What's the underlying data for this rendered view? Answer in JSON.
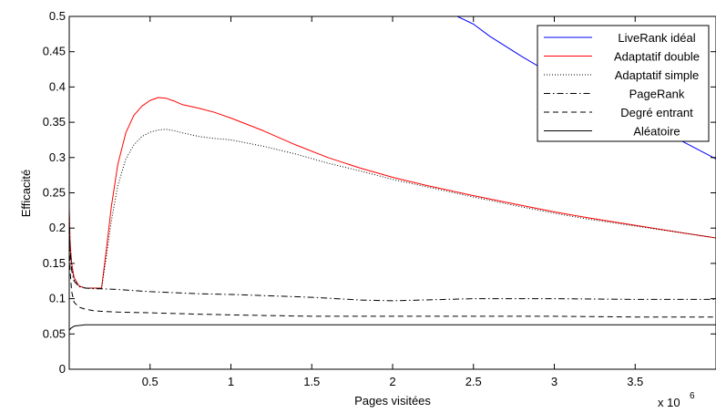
{
  "chart_data": {
    "type": "line",
    "title": "",
    "xlabel": "Pages visitées",
    "ylabel": "Efficacité",
    "x_exponent_label": "x 10",
    "x_exponent_power": "6",
    "xlim": [
      0,
      4000000
    ],
    "ylim": [
      0,
      0.5
    ],
    "xticks": [
      500000,
      1000000,
      1500000,
      2000000,
      2500000,
      3000000,
      3500000
    ],
    "xtick_labels": [
      "0.5",
      "1",
      "1.5",
      "2",
      "2.5",
      "3",
      "3.5"
    ],
    "yticks": [
      0,
      0.05,
      0.1,
      0.15,
      0.2,
      0.25,
      0.3,
      0.35,
      0.4,
      0.45,
      0.5
    ],
    "ytick_labels": [
      "0",
      "0.05",
      "0.1",
      "0.15",
      "0.2",
      "0.25",
      "0.3",
      "0.35",
      "0.4",
      "0.45",
      "0.5"
    ],
    "grid": false,
    "legend_position": "top-right",
    "series": [
      {
        "name": "LiveRank idéal",
        "color": "#0000ff",
        "dash": "solid",
        "x": [
          2400000,
          2500000,
          2600000,
          2800000,
          3000000,
          3200000,
          3400000,
          3600000,
          3800000,
          4000000
        ],
        "y": [
          0.5,
          0.489,
          0.472,
          0.443,
          0.416,
          0.391,
          0.368,
          0.346,
          0.322,
          0.298
        ]
      },
      {
        "name": "Adaptatif double",
        "color": "#ff0000",
        "dash": "solid",
        "x": [
          0,
          5000,
          15000,
          30000,
          60000,
          100000,
          150000,
          200000,
          230000,
          260000,
          300000,
          350000,
          400000,
          450000,
          500000,
          550000,
          600000,
          650000,
          700000,
          800000,
          900000,
          1000000,
          1200000,
          1400000,
          1600000,
          1800000,
          2000000,
          2200000,
          2500000,
          2800000,
          3000000,
          3200000,
          3500000,
          3800000,
          4000000
        ],
        "y": [
          0.23,
          0.18,
          0.15,
          0.13,
          0.118,
          0.115,
          0.115,
          0.115,
          0.17,
          0.23,
          0.29,
          0.335,
          0.36,
          0.373,
          0.381,
          0.385,
          0.384,
          0.38,
          0.375,
          0.37,
          0.364,
          0.356,
          0.338,
          0.318,
          0.3,
          0.285,
          0.272,
          0.261,
          0.246,
          0.232,
          0.223,
          0.215,
          0.204,
          0.193,
          0.186
        ]
      },
      {
        "name": "Adaptatif simple",
        "color": "#000000",
        "dash": "dotted",
        "x": [
          0,
          5000,
          15000,
          30000,
          60000,
          100000,
          150000,
          200000,
          230000,
          260000,
          300000,
          350000,
          400000,
          450000,
          500000,
          550000,
          600000,
          650000,
          700000,
          800000,
          900000,
          1000000,
          1200000,
          1400000,
          1600000,
          1800000,
          2000000,
          2200000,
          2500000,
          2800000,
          3000000,
          3200000,
          3500000,
          3800000,
          4000000
        ],
        "y": [
          0.2,
          0.17,
          0.145,
          0.128,
          0.118,
          0.115,
          0.115,
          0.115,
          0.16,
          0.21,
          0.26,
          0.298,
          0.318,
          0.33,
          0.336,
          0.339,
          0.34,
          0.338,
          0.335,
          0.33,
          0.327,
          0.325,
          0.316,
          0.305,
          0.292,
          0.281,
          0.269,
          0.259,
          0.244,
          0.23,
          0.221,
          0.213,
          0.203,
          0.193,
          0.186
        ]
      },
      {
        "name": "PageRank",
        "color": "#000000",
        "dash": "dashdot",
        "x": [
          0,
          5000,
          15000,
          30000,
          60000,
          100000,
          150000,
          200000,
          300000,
          500000,
          800000,
          1000000,
          1500000,
          1800000,
          2000000,
          2500000,
          3000000,
          3500000,
          4000000
        ],
        "y": [
          0.22,
          0.17,
          0.14,
          0.125,
          0.117,
          0.115,
          0.114,
          0.114,
          0.113,
          0.11,
          0.107,
          0.106,
          0.102,
          0.098,
          0.097,
          0.1,
          0.1,
          0.099,
          0.099
        ]
      },
      {
        "name": "Degré entrant",
        "color": "#000000",
        "dash": "dashed",
        "x": [
          0,
          5000,
          15000,
          30000,
          60000,
          100000,
          150000,
          200000,
          300000,
          500000,
          800000,
          1000000,
          1500000,
          2000000,
          2500000,
          3000000,
          3500000,
          4000000
        ],
        "y": [
          0.2,
          0.14,
          0.11,
          0.095,
          0.088,
          0.085,
          0.083,
          0.082,
          0.081,
          0.08,
          0.078,
          0.077,
          0.075,
          0.075,
          0.075,
          0.075,
          0.074,
          0.074
        ]
      },
      {
        "name": "Aléatoire",
        "color": "#000000",
        "dash": "solid-thin",
        "x": [
          0,
          10000,
          30000,
          60000,
          100000,
          150000,
          300000,
          1000000,
          2000000,
          3000000,
          4000000
        ],
        "y": [
          0.055,
          0.058,
          0.061,
          0.062,
          0.063,
          0.063,
          0.063,
          0.063,
          0.063,
          0.063,
          0.063
        ]
      }
    ]
  }
}
